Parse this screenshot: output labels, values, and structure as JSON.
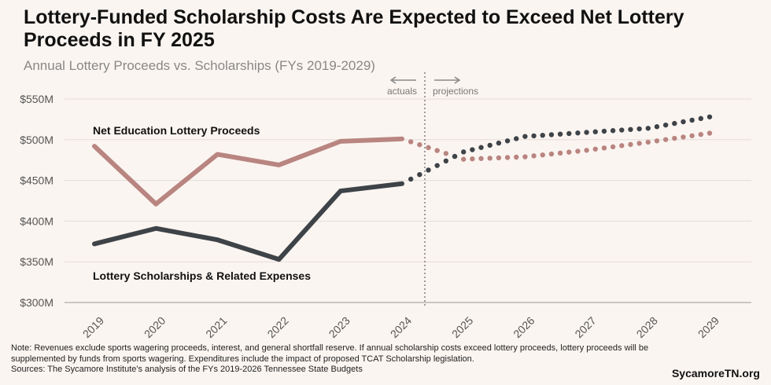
{
  "page": {
    "title": "Lottery-Funded Scholarship Costs Are Expected to Exceed Net Lottery Proceeds in FY 2025",
    "subtitle": "Annual Lottery Proceeds vs. Scholarships (FYs 2019-2029)",
    "note_line1": "Note: Revenues exclude sports wagering proceeds, interest, and general shortfall reserve. If annual scholarship costs exceed lottery proceeds, lottery proceeds will be",
    "note_line2": "supplemented by funds from sports wagering. Expenditures include the impact of proposed TCAT Scholarship legislation.",
    "note_line3": "Sources: The Sycamore Institute's analysis of the FYs 2019-2026 Tennessee State Budgets",
    "brand": "SycamoreTN.org"
  },
  "chart_data": {
    "type": "line",
    "title": "Annual Lottery Proceeds vs. Scholarships (FYs 2019-2029)",
    "categories": [
      "2019",
      "2020",
      "2021",
      "2022",
      "2023",
      "2024",
      "2025",
      "2026",
      "2027",
      "2028",
      "2029"
    ],
    "ylim": [
      300,
      550
    ],
    "yticks": [
      300,
      350,
      400,
      450,
      500,
      550
    ],
    "ytick_labels": [
      "$300M",
      "$350M",
      "$400M",
      "$450M",
      "$500M",
      "$550M"
    ],
    "actual_last_index": 5,
    "annotations": {
      "actuals": "actuals",
      "projections": "projections"
    },
    "series": [
      {
        "name": "Net Education Lottery Proceeds",
        "color": "#b98580",
        "values": [
          492,
          421,
          482,
          469,
          498,
          501,
          476,
          479,
          487,
          497,
          508
        ]
      },
      {
        "name": "Lottery Scholarships & Related Expenses",
        "color": "#3e4348",
        "values": [
          372,
          391,
          377,
          353,
          437,
          446,
          485,
          504,
          509,
          514,
          528
        ]
      }
    ]
  }
}
